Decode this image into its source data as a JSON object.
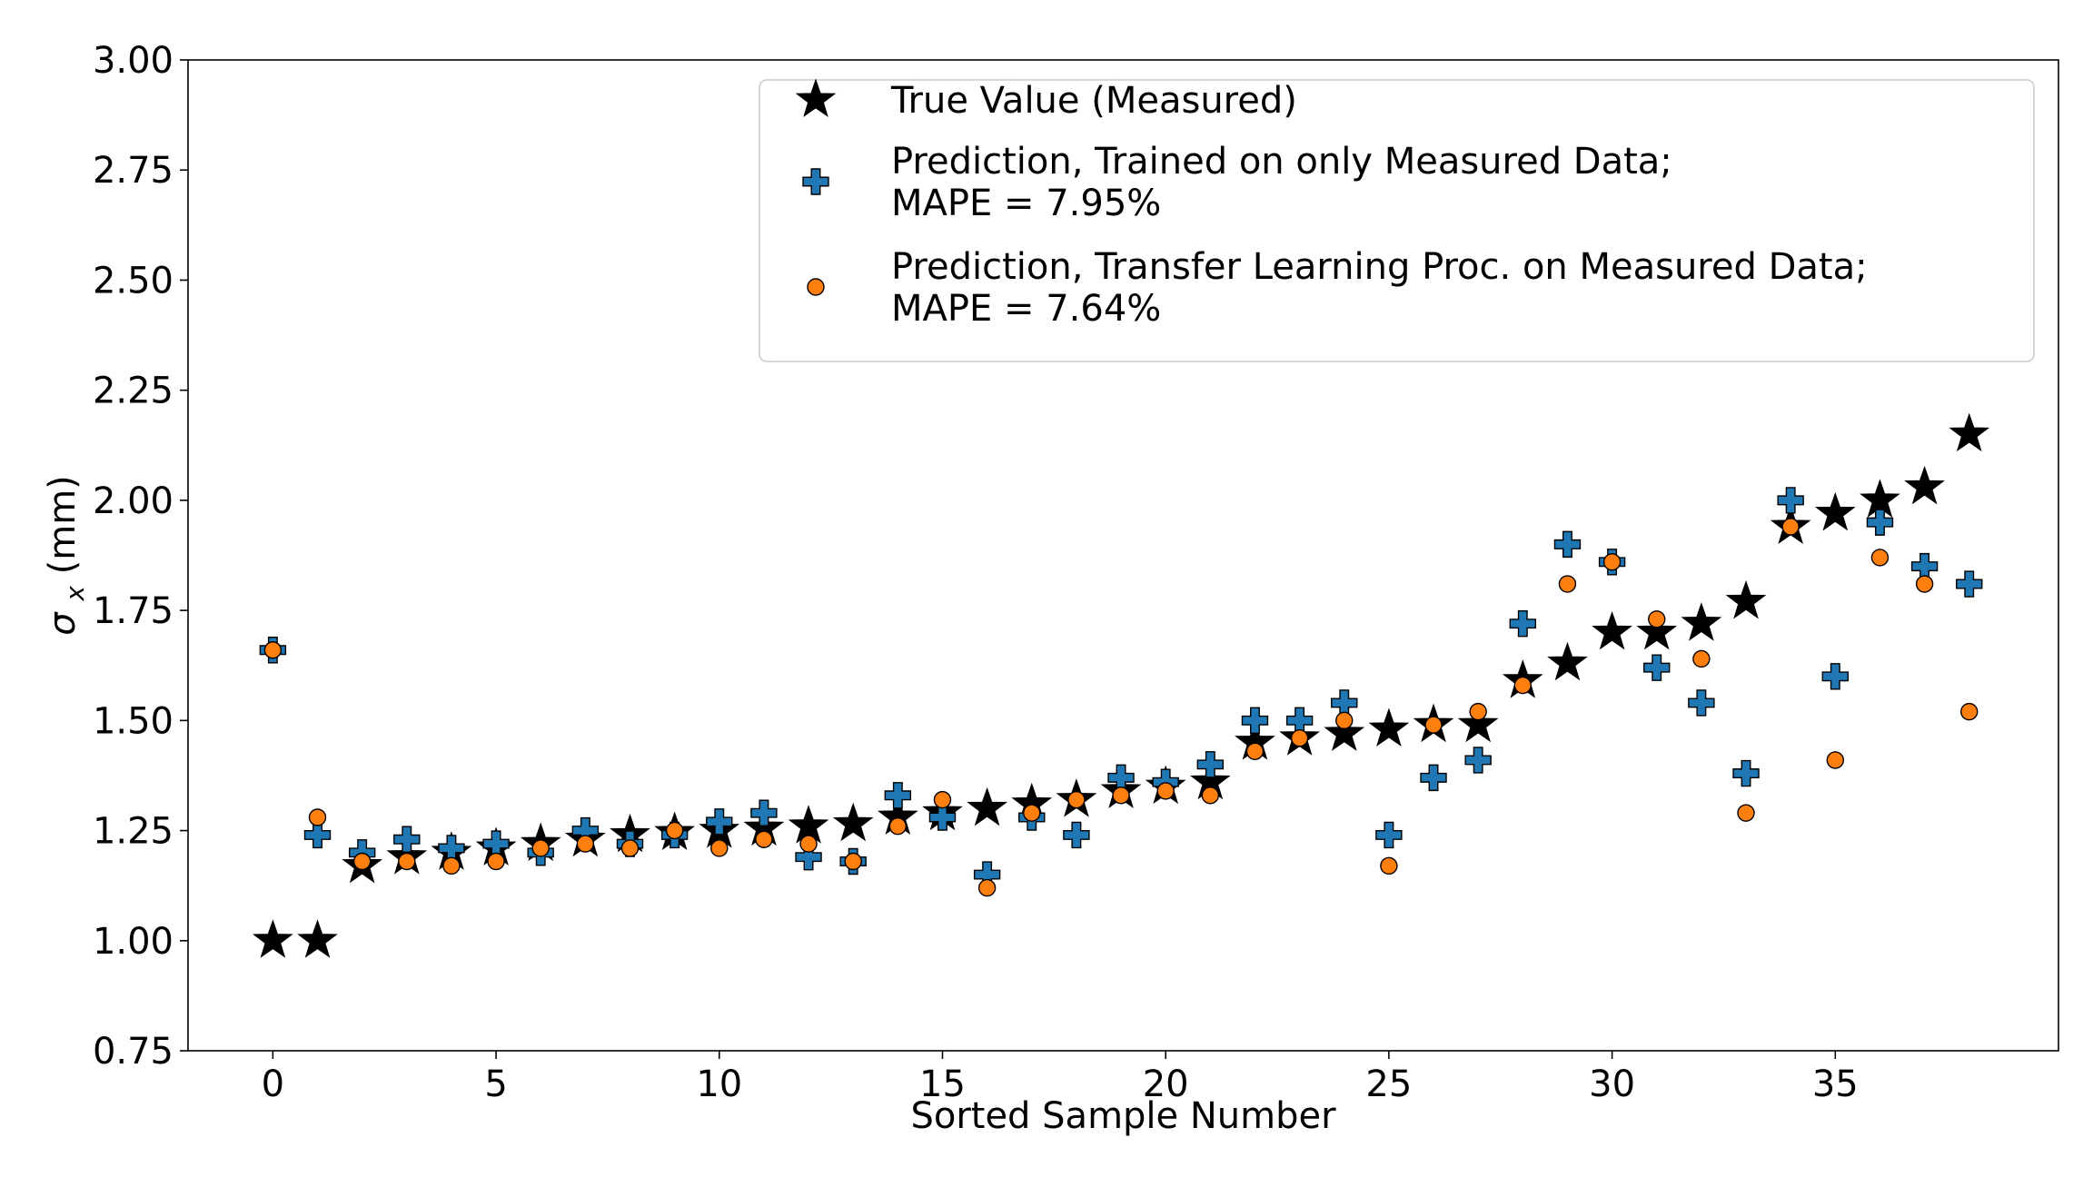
{
  "chart_data": {
    "type": "scatter",
    "title": "",
    "xlabel": "Sorted Sample Number",
    "ylabel_main": "σ",
    "ylabel_sub": "x",
    "ylabel_unit": " (mm)",
    "xlim": [
      -1.9,
      40
    ],
    "ylim": [
      0.75,
      3.0
    ],
    "xticks": [
      0,
      5,
      10,
      15,
      20,
      25,
      30,
      35
    ],
    "xtick_labels": [
      "0",
      "5",
      "10",
      "15",
      "20",
      "25",
      "30",
      "35"
    ],
    "yticks": [
      0.75,
      1.0,
      1.25,
      1.5,
      1.75,
      2.0,
      2.25,
      2.5,
      2.75,
      3.0
    ],
    "ytick_labels": [
      "0.75",
      "1.00",
      "1.25",
      "1.50",
      "1.75",
      "2.00",
      "2.25",
      "2.50",
      "2.75",
      "3.00"
    ],
    "grid": false,
    "legend_position": "top-right",
    "x": [
      0,
      1,
      2,
      3,
      4,
      5,
      6,
      7,
      8,
      9,
      10,
      11,
      12,
      13,
      14,
      15,
      16,
      17,
      18,
      19,
      20,
      21,
      22,
      23,
      24,
      25,
      26,
      27,
      28,
      29,
      30,
      31,
      32,
      33,
      34,
      35,
      36,
      37,
      38
    ],
    "series": [
      {
        "name": "True Value (Measured)",
        "label_lines": [
          "True Value (Measured)"
        ],
        "marker": "star",
        "color": "#000000",
        "values": [
          1.0,
          1.0,
          1.17,
          1.19,
          1.2,
          1.21,
          1.22,
          1.23,
          1.24,
          1.245,
          1.25,
          1.255,
          1.26,
          1.265,
          1.28,
          1.29,
          1.3,
          1.31,
          1.32,
          1.34,
          1.35,
          1.36,
          1.45,
          1.46,
          1.47,
          1.48,
          1.49,
          1.49,
          1.59,
          1.63,
          1.7,
          1.7,
          1.72,
          1.77,
          1.94,
          1.97,
          2.0,
          2.03,
          2.15
        ]
      },
      {
        "name": "Prediction, Trained on only Measured Data; MAPE = 7.95%",
        "label_lines": [
          "Prediction, Trained on only Measured Data;",
          " MAPE = 7.95%"
        ],
        "marker": "plus",
        "color": "#1f77b4",
        "values": [
          1.66,
          1.24,
          1.2,
          1.23,
          1.21,
          1.22,
          1.2,
          1.25,
          1.22,
          1.24,
          1.27,
          1.29,
          1.19,
          1.18,
          1.33,
          1.28,
          1.15,
          1.28,
          1.24,
          1.37,
          1.36,
          1.4,
          1.5,
          1.5,
          1.54,
          1.24,
          1.37,
          1.41,
          1.72,
          1.9,
          1.86,
          1.62,
          1.54,
          1.38,
          2.0,
          1.6,
          1.95,
          1.85,
          1.81
        ]
      },
      {
        "name": "Prediction, Transfer Learning Proc. on Measured Data; MAPE = 7.64%",
        "label_lines": [
          "Prediction, Transfer Learning Proc. on Measured Data;",
          " MAPE = 7.64%"
        ],
        "marker": "circle",
        "color": "#ff7f0e",
        "values": [
          1.66,
          1.28,
          1.18,
          1.18,
          1.17,
          1.18,
          1.21,
          1.22,
          1.21,
          1.25,
          1.21,
          1.23,
          1.22,
          1.18,
          1.26,
          1.32,
          1.12,
          1.29,
          1.32,
          1.33,
          1.34,
          1.33,
          1.43,
          1.46,
          1.5,
          1.17,
          1.49,
          1.52,
          1.58,
          1.81,
          1.86,
          1.73,
          1.64,
          1.29,
          1.94,
          1.41,
          1.87,
          1.81,
          1.52
        ]
      }
    ]
  }
}
